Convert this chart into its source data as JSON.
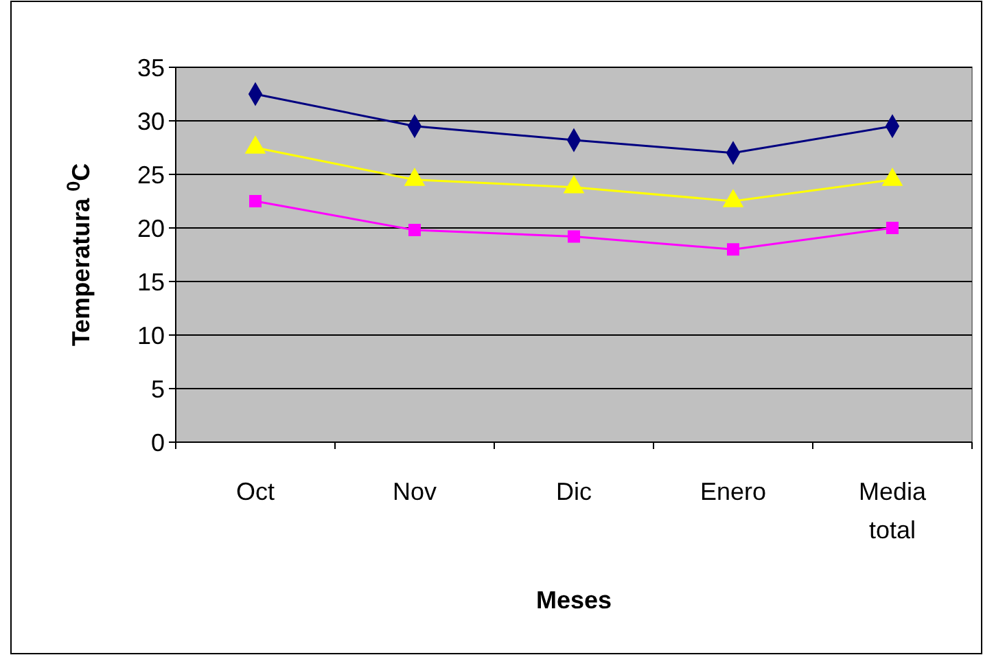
{
  "chart_data": {
    "type": "line",
    "xlabel": "Meses",
    "ylabel": "Temperatura $^{0}$C",
    "categories": [
      "Oct",
      "Nov",
      "Dic",
      "Enero",
      "Media total"
    ],
    "series": [
      {
        "color": "#000080",
        "marker": "diamond",
        "values": [
          32.5,
          29.5,
          28.2,
          27,
          29.5
        ]
      },
      {
        "color": "#ffff00",
        "marker": "triangle",
        "values": [
          27.5,
          24.5,
          23.8,
          22.5,
          24.5
        ]
      },
      {
        "color": "#ff00ff",
        "marker": "square",
        "values": [
          22.5,
          19.8,
          19.2,
          18,
          20
        ]
      }
    ],
    "ylim": [
      0,
      35
    ],
    "yticks": [
      0,
      5,
      10,
      15,
      20,
      25,
      30,
      35
    ],
    "grid": "y"
  }
}
